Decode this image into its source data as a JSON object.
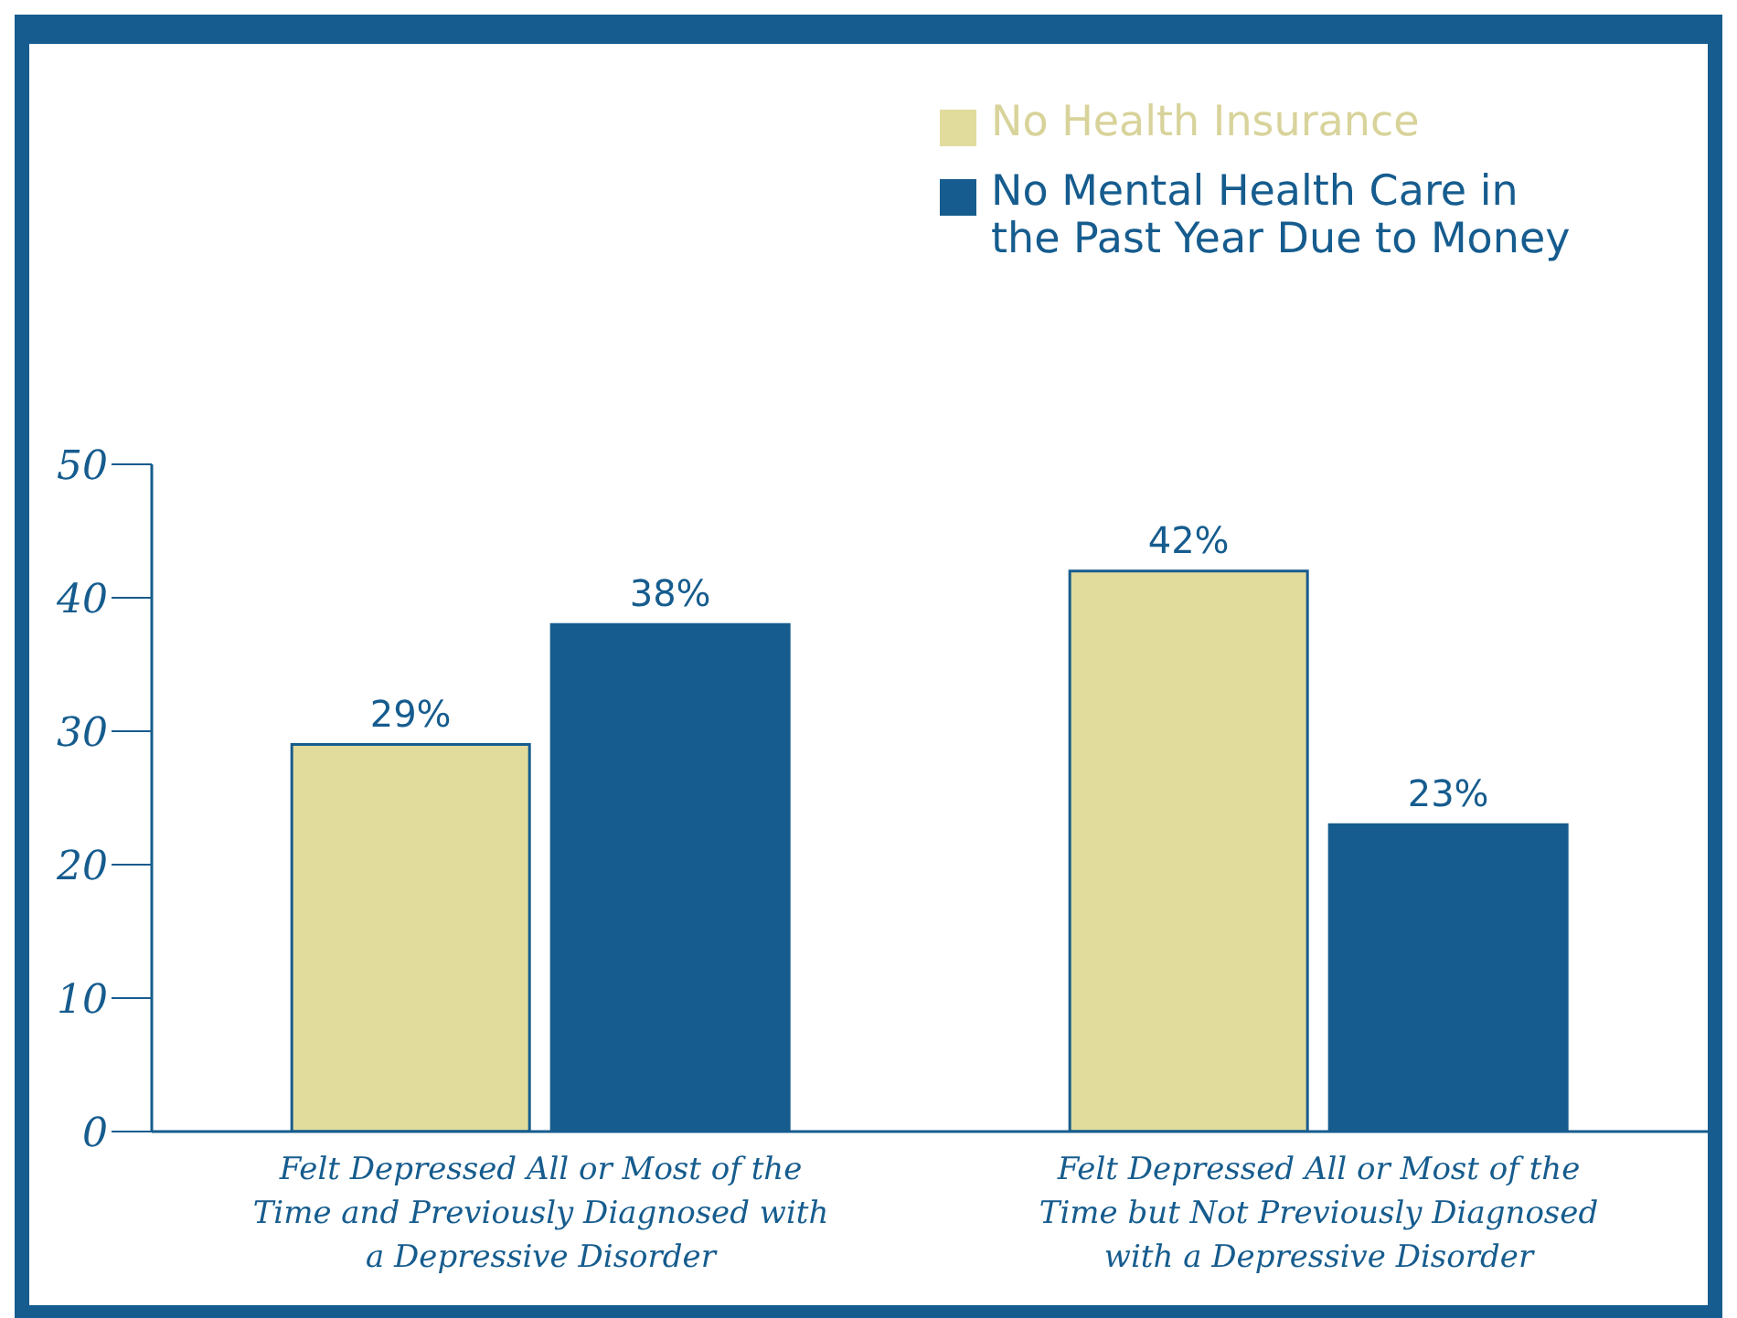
{
  "chart_data": {
    "type": "bar",
    "categories": [
      "Felt Depressed All or Most of the Time and Previously Diagnosed with a Depressive Disorder",
      "Felt Depressed All or Most of the Time but Not Previously Diagnosed with a Depressive Disorder"
    ],
    "series": [
      {
        "name": "No Health Insurance",
        "color": "#e1dc9c",
        "values": [
          29,
          42
        ],
        "value_labels": [
          "29%",
          "42%"
        ]
      },
      {
        "name": "No Mental Health Care in the Past Year Due to Money",
        "color": "#165c8e",
        "values": [
          38,
          23
        ],
        "value_labels": [
          "38%",
          "23%"
        ]
      }
    ],
    "ylim": [
      0,
      50
    ],
    "yticks": [
      0,
      10,
      20,
      30,
      40,
      50
    ],
    "grid": false,
    "legend": "top right"
  }
}
